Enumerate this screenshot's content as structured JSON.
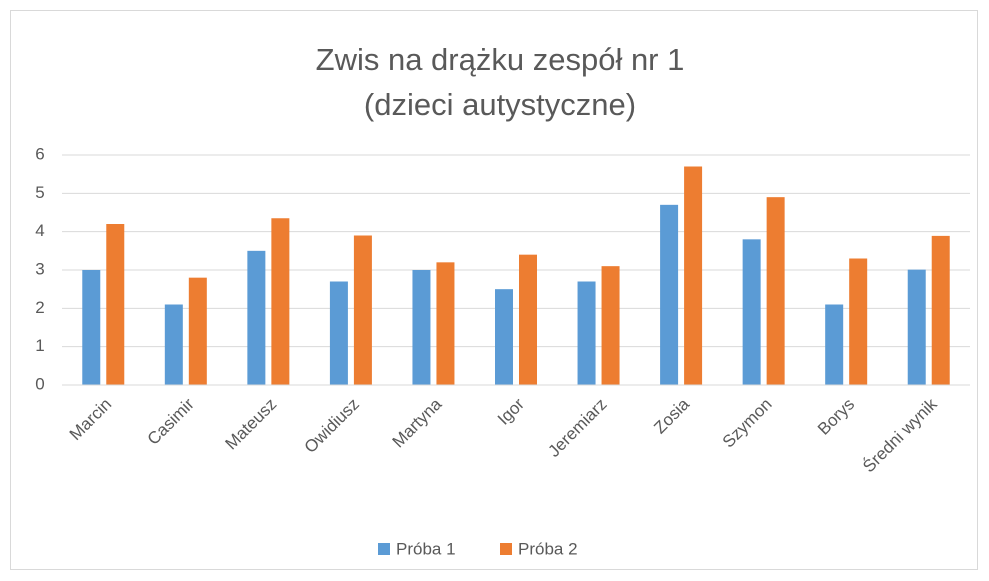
{
  "chart_data": {
    "type": "bar",
    "title": [
      "Zwis na drążku zespół nr 1",
      "(dzieci autystyczne)"
    ],
    "categories": [
      "Marcin",
      "Casimir",
      "Mateusz",
      "Owidiusz",
      "Martyna",
      "Igor",
      "Jeremiarz",
      "Zosia",
      "Szymon",
      "Borys",
      "Średni wynik"
    ],
    "series": [
      {
        "name": "Próba 1",
        "color": "#5b9bd5",
        "values": [
          3,
          2.1,
          3.5,
          2.7,
          3,
          2.5,
          2.7,
          4.7,
          3.8,
          2.1,
          3.01
        ]
      },
      {
        "name": "Próba 2",
        "color": "#ed7d31",
        "values": [
          4.2,
          2.8,
          4.35,
          3.9,
          3.2,
          3.4,
          3.1,
          5.7,
          4.9,
          3.3,
          3.89
        ]
      }
    ],
    "ylim": [
      0,
      6
    ],
    "yticks": [
      0,
      1,
      2,
      3,
      4,
      5,
      6
    ],
    "grid": true,
    "legend": "bottom"
  }
}
